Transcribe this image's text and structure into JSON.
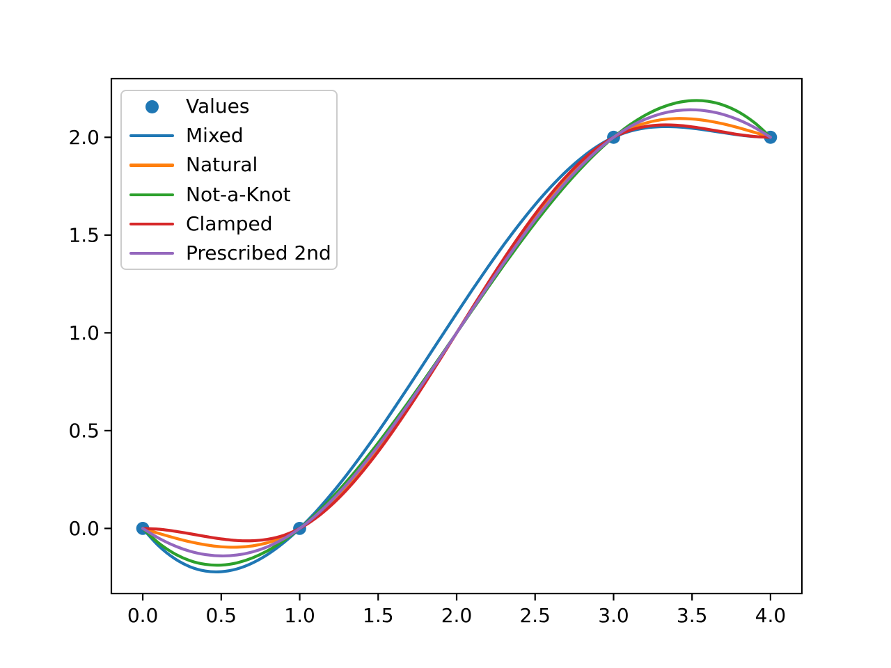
{
  "figure": {
    "background": "#ffffff",
    "axis_color": "#000000",
    "tick_label_color": "#000000",
    "legend_border_color": "#cccccc"
  },
  "chart_data": {
    "type": "line",
    "title": "",
    "xlabel": "",
    "ylabel": "",
    "grid": false,
    "legend_position": "upper left",
    "xlim": [
      -0.2,
      4.2
    ],
    "ylim": [
      -0.333,
      2.3
    ],
    "xticks": [
      "0.0",
      "0.5",
      "1.0",
      "1.5",
      "2.0",
      "2.5",
      "3.0",
      "3.5",
      "4.0"
    ],
    "yticks": [
      "0.0",
      "0.5",
      "1.0",
      "1.5",
      "2.0"
    ],
    "scatter": {
      "name": "Values",
      "color": "#1f77b4",
      "x": [
        0,
        1,
        3,
        4
      ],
      "y": [
        0,
        0,
        2,
        2
      ]
    },
    "x": [
      0.0,
      0.1,
      0.2,
      0.3,
      0.4,
      0.5,
      0.6,
      0.7,
      0.8,
      0.9,
      1.0,
      1.1,
      1.2,
      1.3,
      1.4,
      1.5,
      1.6,
      1.7,
      1.8,
      1.9,
      2.0,
      2.1,
      2.2,
      2.3,
      2.4,
      2.5,
      2.6,
      2.7,
      2.8,
      2.9,
      3.0,
      3.1,
      3.2,
      3.3,
      3.4,
      3.5,
      3.6,
      3.7,
      3.8,
      3.9,
      4.0
    ],
    "series": [
      {
        "name": "Mixed",
        "color": "#1f77b4",
        "values": [
          0,
          -0.0879,
          -0.1527,
          -0.1956,
          -0.218,
          -0.2214,
          -0.2071,
          -0.1764,
          -0.1307,
          -0.0715,
          0,
          0.0824,
          0.1743,
          0.2745,
          0.3817,
          0.4946,
          0.612,
          0.7325,
          0.8549,
          0.9778,
          1.1,
          1.2202,
          1.3371,
          1.4495,
          1.556,
          1.6554,
          1.7463,
          1.8275,
          1.8977,
          1.9556,
          2.0,
          2.0301,
          2.0475,
          2.0546,
          2.0535,
          2.0464,
          2.0357,
          2.0234,
          2.0119,
          2.0035,
          2.0
        ]
      },
      {
        "name": "Natural",
        "color": "#ff7f0e",
        "values": [
          0,
          -0.0248,
          -0.048,
          -0.0683,
          -0.084,
          -0.0938,
          -0.096,
          -0.0893,
          -0.072,
          -0.0428,
          0,
          0.0573,
          0.128,
          0.2108,
          0.304,
          0.4063,
          0.516,
          0.6318,
          0.752,
          0.8753,
          1.0,
          1.1248,
          1.248,
          1.3683,
          1.484,
          1.5938,
          1.696,
          1.7893,
          1.872,
          1.9428,
          2.0,
          2.0428,
          2.072,
          2.0893,
          2.096,
          2.0938,
          2.084,
          2.0683,
          2.048,
          2.0248,
          2.0
        ]
      },
      {
        "name": "Not-a-Knot",
        "color": "#2ca02c",
        "values": [
          0,
          -0.0735,
          -0.128,
          -0.1645,
          -0.184,
          -0.1875,
          -0.176,
          -0.1505,
          -0.112,
          -0.0615,
          0,
          0.0715,
          0.152,
          0.2405,
          0.336,
          0.4375,
          0.544,
          0.6545,
          0.768,
          0.8835,
          1.0,
          1.1165,
          1.232,
          1.3455,
          1.456,
          1.5625,
          1.664,
          1.7595,
          1.848,
          1.9285,
          2.0,
          2.0615,
          2.112,
          2.1505,
          2.176,
          2.1875,
          2.184,
          2.1645,
          2.128,
          2.0735,
          2.0
        ]
      },
      {
        "name": "Clamped",
        "color": "#d62728",
        "values": [
          0,
          -0.0039,
          -0.0137,
          -0.027,
          -0.0411,
          -0.0536,
          -0.0617,
          -0.063,
          -0.0549,
          -0.0347,
          0,
          0.0511,
          0.1177,
          0.198,
          0.2903,
          0.3929,
          0.504,
          0.622,
          0.7451,
          0.8717,
          1.0,
          1.1283,
          1.2549,
          1.378,
          1.496,
          1.6071,
          1.7097,
          1.802,
          1.8823,
          1.9489,
          2.0,
          2.0347,
          2.0549,
          2.063,
          2.0617,
          2.0536,
          2.0411,
          2.027,
          2.0137,
          2.0039,
          2.0
        ]
      },
      {
        "name": "Prescribed 2nd",
        "color": "#9467bd",
        "values": [
          0,
          -0.0491,
          -0.088,
          -0.1164,
          -0.134,
          -0.1406,
          -0.136,
          -0.1199,
          -0.092,
          -0.0521,
          0,
          0.0644,
          0.14,
          0.2256,
          0.32,
          0.4219,
          0.53,
          0.6431,
          0.76,
          0.8794,
          1.0,
          1.1206,
          1.24,
          1.3569,
          1.47,
          1.5781,
          1.68,
          1.7744,
          1.86,
          1.9356,
          2.0,
          2.0521,
          2.092,
          2.1199,
          2.136,
          2.1406,
          2.134,
          2.1164,
          2.088,
          2.0491,
          2.0
        ]
      }
    ]
  }
}
